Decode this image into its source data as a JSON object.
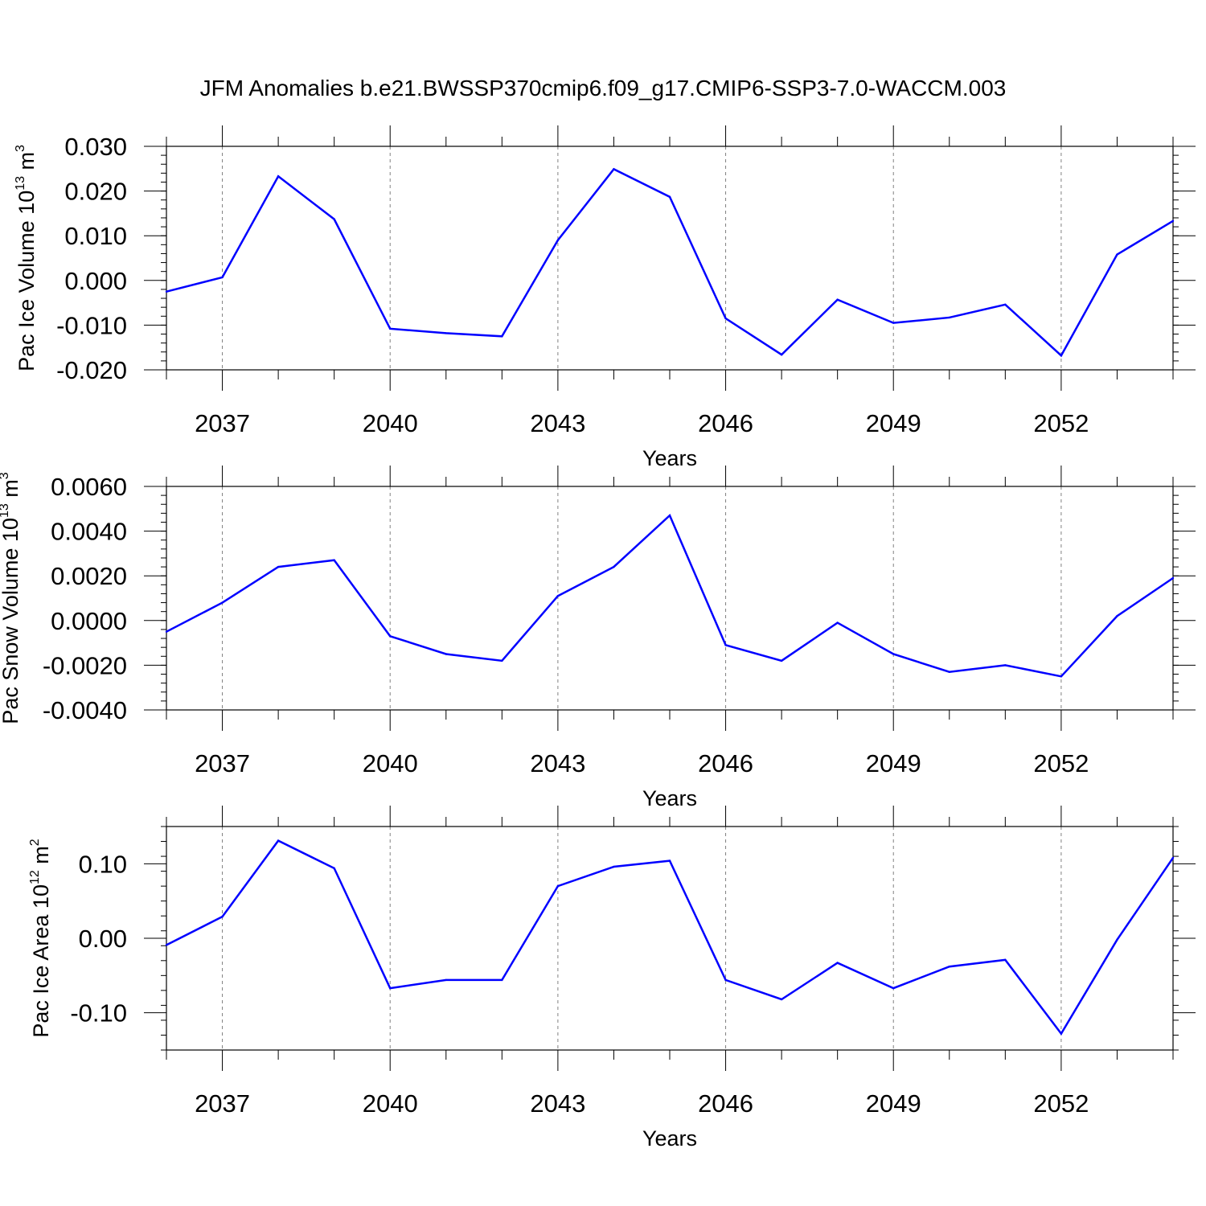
{
  "figure_title": "JFM Anomalies b.e21.BWSSP370cmip6.f09_g17.CMIP6-SSP3-7.0-WACCM.003",
  "colors": {
    "line": "#0000ff",
    "axis": "#000000",
    "grid": "#808080"
  },
  "chart_data": [
    {
      "type": "line",
      "ylabel": {
        "main": "Pac Ice Volume 10",
        "exp": "13",
        "unit": " m",
        "unit_exp": "3"
      },
      "xlabel": "Years",
      "xlim": [
        2036,
        2054
      ],
      "ylim": [
        -0.02,
        0.03
      ],
      "yticks": [
        -0.02,
        -0.01,
        0.0,
        0.01,
        0.02,
        0.03
      ],
      "ytick_labels": [
        "-0.020",
        "-0.010",
        "0.000",
        "0.010",
        "0.020",
        "0.030"
      ],
      "xticks": [
        2037,
        2040,
        2043,
        2046,
        2049,
        2052
      ],
      "xtick_labels": [
        "2037",
        "2040",
        "2043",
        "2046",
        "2049",
        "2052"
      ],
      "grid": "vertical dashed at labeled years",
      "x": [
        2036,
        2037,
        2038,
        2039,
        2040,
        2041,
        2042,
        2043,
        2044,
        2045,
        2046,
        2047,
        2048,
        2049,
        2050,
        2051,
        2052,
        2053,
        2054
      ],
      "y": [
        -0.0025,
        0.0007,
        0.0233,
        0.0137,
        -0.0108,
        -0.0118,
        -0.0125,
        0.009,
        0.0249,
        0.0187,
        -0.0085,
        -0.0166,
        -0.0043,
        -0.0095,
        -0.0083,
        -0.0054,
        -0.0168,
        0.0058,
        0.0133
      ]
    },
    {
      "type": "line",
      "ylabel": {
        "main": "Pac Snow Volume 10",
        "exp": "13",
        "unit": " m",
        "unit_exp": "3"
      },
      "xlabel": "Years",
      "xlim": [
        2036,
        2054
      ],
      "ylim": [
        -0.004,
        0.006
      ],
      "yticks": [
        -0.004,
        -0.002,
        0.0,
        0.002,
        0.004,
        0.006
      ],
      "ytick_labels": [
        "-0.0040",
        "-0.0020",
        "0.0000",
        "0.0020",
        "0.0040",
        "0.0060"
      ],
      "xticks": [
        2037,
        2040,
        2043,
        2046,
        2049,
        2052
      ],
      "xtick_labels": [
        "2037",
        "2040",
        "2043",
        "2046",
        "2049",
        "2052"
      ],
      "grid": "vertical dashed at labeled years",
      "x": [
        2036,
        2037,
        2038,
        2039,
        2040,
        2041,
        2042,
        2043,
        2044,
        2045,
        2046,
        2047,
        2048,
        2049,
        2050,
        2051,
        2052,
        2053,
        2054
      ],
      "y": [
        -0.0005,
        0.0008,
        0.0024,
        0.0027,
        -0.0007,
        -0.0015,
        -0.0018,
        0.0011,
        0.0024,
        0.0047,
        -0.0011,
        -0.0018,
        -0.0001,
        -0.0015,
        -0.0023,
        -0.002,
        -0.0025,
        0.0002,
        0.0019
      ]
    },
    {
      "type": "line",
      "ylabel": {
        "main": "Pac Ice Area 10",
        "exp": "12",
        "unit": " m",
        "unit_exp": "2"
      },
      "xlabel": "Years",
      "xlim": [
        2036,
        2054
      ],
      "ylim": [
        -0.15,
        0.15
      ],
      "yticks": [
        -0.1,
        0.0,
        0.1
      ],
      "ytick_labels": [
        "-0.10",
        "0.00",
        "0.10"
      ],
      "xticks": [
        2037,
        2040,
        2043,
        2046,
        2049,
        2052
      ],
      "xtick_labels": [
        "2037",
        "2040",
        "2043",
        "2046",
        "2049",
        "2052"
      ],
      "grid": "vertical dashed at labeled years",
      "x": [
        2036,
        2037,
        2038,
        2039,
        2040,
        2041,
        2042,
        2043,
        2044,
        2045,
        2046,
        2047,
        2048,
        2049,
        2050,
        2051,
        2052,
        2053,
        2054
      ],
      "y": [
        -0.009,
        0.029,
        0.131,
        0.094,
        -0.067,
        -0.056,
        -0.056,
        0.07,
        0.096,
        0.104,
        -0.056,
        -0.082,
        -0.033,
        -0.067,
        -0.038,
        -0.029,
        -0.128,
        -0.002,
        0.108
      ]
    }
  ]
}
